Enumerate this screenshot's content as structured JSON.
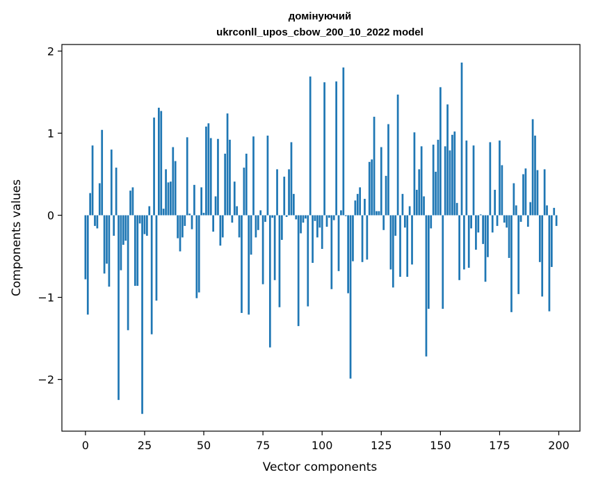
{
  "chart_data": {
    "type": "bar",
    "title_line1": "домінуючий",
    "title_line2": "ukrconll_upos_cbow_200_10_2022 model",
    "xlabel": "Vector components",
    "ylabel": "Components values",
    "xlim": [
      -9.95,
      208.95
    ],
    "ylim": [
      -2.63,
      2.08
    ],
    "xticks": [
      0,
      25,
      50,
      75,
      100,
      125,
      150,
      175,
      200
    ],
    "xtick_labels": [
      "0",
      "25",
      "50",
      "75",
      "100",
      "125",
      "150",
      "175",
      "200"
    ],
    "yticks": [
      -2,
      -1,
      0,
      1,
      2
    ],
    "ytick_labels": [
      "−2",
      "−1",
      "0",
      "1",
      "2"
    ],
    "grid": false,
    "bar_color": "#1f77b4",
    "values": [
      -0.78,
      -1.21,
      0.27,
      0.85,
      -0.13,
      -0.16,
      0.39,
      1.04,
      -0.71,
      -0.59,
      -0.87,
      0.8,
      -0.25,
      0.58,
      -2.25,
      -0.67,
      -0.36,
      -0.31,
      -1.4,
      0.3,
      0.34,
      -0.86,
      -0.86,
      -0.1,
      -2.42,
      -0.23,
      -0.25,
      0.11,
      -1.45,
      1.19,
      -1.04,
      1.31,
      1.27,
      0.08,
      0.56,
      0.4,
      0.41,
      0.83,
      0.66,
      -0.28,
      -0.44,
      -0.27,
      -0.13,
      0.95,
      0.02,
      -0.17,
      0.37,
      -1.01,
      -0.94,
      0.34,
      0.03,
      1.08,
      1.12,
      0.94,
      -0.2,
      0.23,
      0.93,
      -0.37,
      -0.27,
      0.75,
      1.24,
      0.92,
      -0.09,
      0.41,
      0.11,
      -0.27,
      -1.19,
      0.58,
      0.75,
      -1.21,
      -0.48,
      0.96,
      -0.27,
      -0.18,
      0.06,
      -0.84,
      -0.08,
      0.97,
      -1.61,
      -0.03,
      -0.79,
      0.56,
      -1.12,
      -0.3,
      0.47,
      -0.02,
      0.56,
      0.89,
      0.26,
      -0.05,
      -1.35,
      -0.22,
      -0.09,
      -0.04,
      -1.11,
      1.69,
      -0.58,
      -0.07,
      -0.27,
      -0.15,
      -0.41,
      1.62,
      -0.14,
      -0.03,
      -0.9,
      -0.06,
      1.63,
      -0.68,
      0.06,
      1.8,
      -0.01,
      -0.95,
      -1.99,
      -0.56,
      0.18,
      0.26,
      0.34,
      -0.57,
      0.2,
      -0.54,
      0.65,
      0.68,
      1.2,
      0.05,
      0.05,
      0.83,
      -0.18,
      0.48,
      1.11,
      -0.66,
      -0.88,
      -0.25,
      1.47,
      -0.75,
      0.26,
      -0.15,
      -0.75,
      0.11,
      -0.6,
      1.01,
      0.31,
      0.56,
      0.84,
      0.23,
      -1.72,
      -1.14,
      -0.16,
      0.86,
      0.53,
      0.92,
      1.56,
      -1.14,
      0.84,
      1.35,
      0.79,
      0.98,
      1.02,
      0.15,
      -0.79,
      1.86,
      -0.66,
      0.91,
      -0.64,
      -0.16,
      0.85,
      -0.42,
      -0.21,
      0.01,
      -0.35,
      -0.81,
      -0.51,
      0.89,
      -0.21,
      0.31,
      -0.13,
      0.91,
      0.61,
      -0.09,
      -0.15,
      -0.52,
      -1.18,
      0.39,
      0.12,
      -0.96,
      -0.08,
      0.5,
      0.57,
      -0.14,
      0.16,
      1.17,
      0.97,
      0.55,
      -0.57,
      -0.99,
      0.56,
      0.12,
      -1.17,
      -0.63,
      0.09,
      -0.13
    ]
  }
}
